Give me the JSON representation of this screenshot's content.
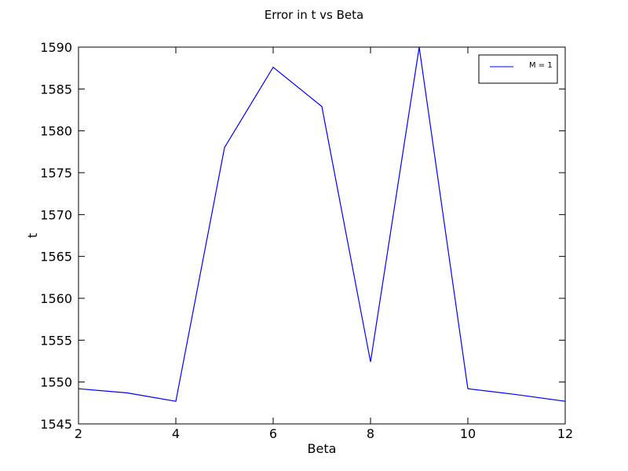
{
  "chart_data": {
    "type": "line",
    "title": "Error in t vs Beta",
    "xlabel": "Beta",
    "ylabel": "t",
    "xlim": [
      2,
      12
    ],
    "ylim": [
      1545,
      1590
    ],
    "x_ticks": [
      "2",
      "4",
      "6",
      "8",
      "10",
      "12"
    ],
    "y_ticks": [
      "1545",
      "1550",
      "1555",
      "1560",
      "1565",
      "1570",
      "1575",
      "1580",
      "1585",
      "1590"
    ],
    "grid": false,
    "legend_position": "top-right",
    "x": [
      2,
      3,
      4,
      5,
      6,
      7,
      8,
      9,
      10,
      11,
      12
    ],
    "series": [
      {
        "name": "M = 1",
        "color": "#0000ff",
        "values": [
          1549.2,
          1548.7,
          1547.7,
          1578.0,
          1587.6,
          1582.9,
          1552.4,
          1590.0,
          1549.2,
          1548.5,
          1547.7
        ]
      }
    ]
  }
}
